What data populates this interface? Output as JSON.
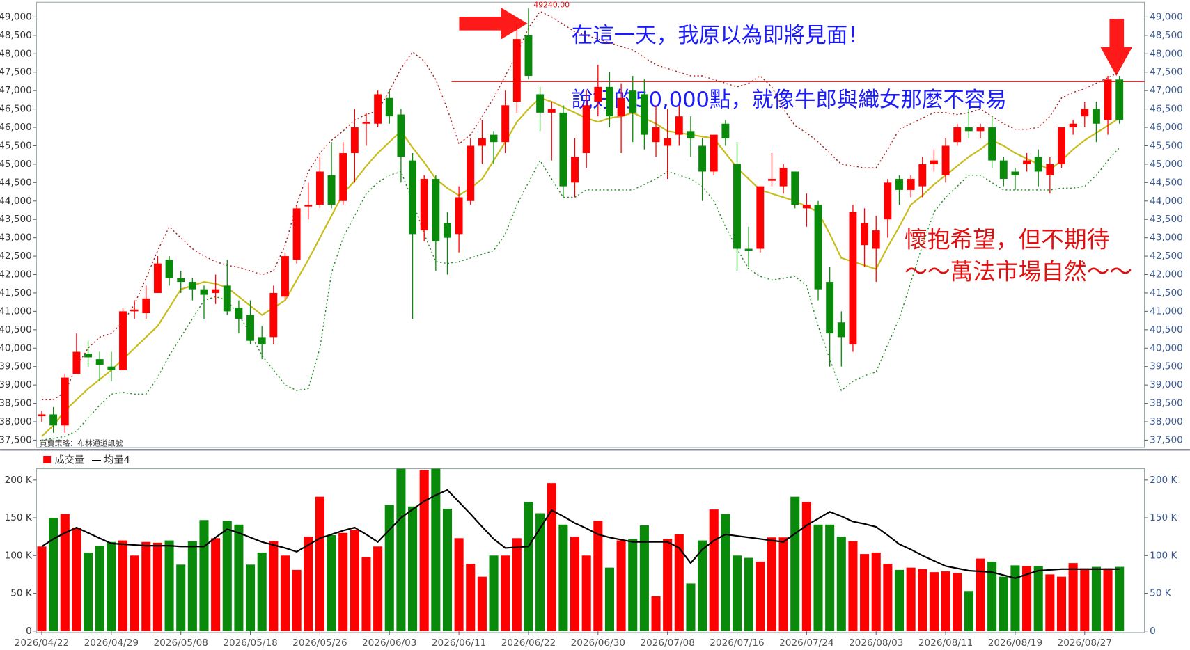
{
  "chart_data": [
    {
      "type": "candlestick",
      "note": "買賣策略：布林通道訊號",
      "annotations": [
        "在這一天，我原以為即將見面！",
        "說好的50,000點，就像牛郎與織女那麼不容易",
        "懷抱希望，但不期待",
        "～～萬法市場自然～～"
      ],
      "max_label": {
        "value": 49240,
        "label": "49240.00"
      },
      "up_color": "#ff0000",
      "down_color": "#0a8a0a",
      "hline": 47250,
      "hline_color": "#b00000",
      "ylim": [
        37300,
        49400
      ],
      "yticks": [
        {
          "value": 37500,
          "label": "37,500"
        },
        {
          "value": 38000,
          "label": "38,000"
        },
        {
          "value": 38500,
          "label": "38,500"
        },
        {
          "value": 39000,
          "label": "39,000"
        },
        {
          "value": 39500,
          "label": "39,500"
        },
        {
          "value": 40000,
          "label": "40,000"
        },
        {
          "value": 40500,
          "label": "40,500"
        },
        {
          "value": 41000,
          "label": "41,000"
        },
        {
          "value": 41500,
          "label": "41,500"
        },
        {
          "value": 42000,
          "label": "42,000"
        },
        {
          "value": 42500,
          "label": "42,500"
        },
        {
          "value": 43000,
          "label": "43,000"
        },
        {
          "value": 43500,
          "label": "43,500"
        },
        {
          "value": 44000,
          "label": "44,000"
        },
        {
          "value": 44500,
          "label": "44,500"
        },
        {
          "value": 45000,
          "label": "45,000"
        },
        {
          "value": 45500,
          "label": "45,500"
        },
        {
          "value": 46000,
          "label": "46,000"
        },
        {
          "value": 46500,
          "label": "46,500"
        },
        {
          "value": 47000,
          "label": "47,000"
        },
        {
          "value": 47500,
          "label": "47,500"
        },
        {
          "value": 48000,
          "label": "48,000"
        },
        {
          "value": 48500,
          "label": "48,500"
        },
        {
          "value": 49000,
          "label": "49,000"
        }
      ],
      "categories": [
        "2026/04/22",
        null,
        null,
        null,
        null,
        null,
        "2026/04/29",
        null,
        null,
        null,
        null,
        null,
        "2026/05/08",
        null,
        null,
        null,
        null,
        null,
        "2026/05/18",
        null,
        null,
        null,
        null,
        null,
        "2026/05/26",
        null,
        null,
        null,
        null,
        null,
        "2026/06/03",
        null,
        null,
        null,
        null,
        null,
        "2026/06/11",
        null,
        null,
        null,
        null,
        null,
        "2026/06/22",
        null,
        null,
        null,
        null,
        null,
        "2026/06/30",
        null,
        null,
        null,
        null,
        null,
        "2026/07/08",
        null,
        null,
        null,
        null,
        null,
        "2026/07/16",
        null,
        null,
        null,
        null,
        null,
        "2026/07/24",
        null,
        null,
        null,
        null,
        null,
        "2026/08/03",
        null,
        null,
        null,
        null,
        null,
        "2026/08/11",
        null,
        null,
        null,
        null,
        null,
        "2026/08/19",
        null,
        null,
        null,
        null,
        null,
        "2026/08/27",
        null,
        null,
        null
      ],
      "open": [
        38150,
        38200,
        37900,
        39300,
        39850,
        39700,
        39500,
        39400,
        41000,
        40950,
        41500,
        42400,
        41900,
        41800,
        41600,
        41500,
        41700,
        41100,
        40900,
        40300,
        40300,
        41400,
        42400,
        43850,
        43900,
        44700,
        44000,
        45300,
        46100,
        46100,
        46800,
        46350,
        45100,
        43200,
        44600,
        43400,
        43100,
        44000,
        45500,
        45800,
        45600,
        46700,
        48500,
        46900,
        46400,
        46400,
        44500,
        45300,
        46700,
        47100,
        46300,
        47000,
        46900,
        45600,
        45500,
        45800,
        45900,
        45500,
        44800,
        46100,
        45000,
        42700,
        42700,
        44550,
        44400,
        44800,
        43800,
        43900,
        41800,
        40700,
        40100,
        42800,
        42700,
        43500,
        44600,
        44300,
        44400,
        45000,
        44700,
        45600,
        46000,
        45900,
        46000,
        45100,
        44800,
        45000,
        45200,
        44700,
        45000,
        46000,
        46300,
        46500,
        46200,
        47300
      ],
      "high": [
        38300,
        38400,
        39300,
        40400,
        40200,
        39900,
        39900,
        41100,
        41300,
        41700,
        42500,
        42500,
        42100,
        41900,
        41700,
        42000,
        42400,
        41300,
        41300,
        40600,
        41700,
        42600,
        43900,
        44500,
        45200,
        45600,
        45600,
        46500,
        46400,
        47000,
        47000,
        46500,
        45300,
        44700,
        44700,
        43700,
        44400,
        45700,
        46200,
        45900,
        47000,
        48800,
        49240,
        47100,
        46700,
        46600,
        45700,
        47000,
        47700,
        47500,
        47200,
        47400,
        47300,
        46600,
        46500,
        46600,
        46300,
        45700,
        45800,
        46200,
        45600,
        43300,
        44400,
        45300,
        45000,
        44800,
        44200,
        44000,
        42200,
        41000,
        43900,
        43800,
        43600,
        44600,
        44700,
        44700,
        45200,
        45400,
        45700,
        46100,
        46500,
        46100,
        46300,
        45200,
        44900,
        45300,
        45400,
        45200,
        46000,
        46200,
        46700,
        46700,
        47400,
        47400
      ],
      "low": [
        38000,
        37700,
        37700,
        39300,
        39500,
        39100,
        39100,
        39400,
        40800,
        40800,
        41500,
        41700,
        41500,
        41300,
        40800,
        41200,
        40900,
        40400,
        40100,
        39700,
        40100,
        41300,
        42300,
        43500,
        43800,
        43800,
        43900,
        44500,
        45500,
        46000,
        46100,
        44500,
        40800,
        42900,
        42100,
        42000,
        42600,
        43900,
        45000,
        45000,
        45300,
        46400,
        47300,
        45900,
        45100,
        44100,
        44100,
        44900,
        46300,
        46000,
        45300,
        45600,
        45400,
        45200,
        44600,
        45500,
        45200,
        44000,
        44700,
        45500,
        42100,
        42200,
        42600,
        44400,
        44200,
        43800,
        43300,
        41300,
        39500,
        39500,
        39900,
        42200,
        41800,
        43000,
        43900,
        44100,
        44100,
        44800,
        44500,
        45500,
        45700,
        45700,
        44900,
        44400,
        44300,
        44800,
        44400,
        44200,
        44900,
        45800,
        46000,
        45600,
        45800,
        46100
      ],
      "close": [
        38200,
        37900,
        39200,
        39900,
        39750,
        39550,
        39400,
        41000,
        41050,
        41350,
        42300,
        41900,
        41800,
        41600,
        41450,
        41600,
        41000,
        40800,
        40200,
        40100,
        41500,
        42500,
        43800,
        43900,
        44800,
        43900,
        45300,
        46000,
        46150,
        46900,
        46300,
        45200,
        43100,
        44600,
        42900,
        43000,
        44100,
        45500,
        45700,
        45600,
        46600,
        48400,
        47400,
        46400,
        46500,
        44400,
        45200,
        46600,
        47100,
        46300,
        46800,
        46400,
        45800,
        46000,
        45700,
        46300,
        45700,
        44800,
        45800,
        45700,
        42700,
        42650,
        44400,
        44600,
        44900,
        43900,
        43900,
        41600,
        40400,
        40300,
        43700,
        43400,
        43200,
        44500,
        44300,
        44600,
        45000,
        45100,
        45500,
        46000,
        45900,
        46000,
        45100,
        44600,
        44700,
        45100,
        44800,
        45000,
        46000,
        46100,
        46500,
        46100,
        47300,
        46200
      ],
      "lines": [
        {
          "color": "#c8bb1a",
          "dash": false,
          "values": [
            37600,
            37900,
            38300,
            38600,
            38900,
            39150,
            39400,
            39700,
            40000,
            40300,
            40600,
            41100,
            41600,
            41700,
            41800,
            41750,
            41650,
            41400,
            41150,
            40900,
            41100,
            41300,
            41850,
            42400,
            43000,
            43600,
            44200,
            44550,
            44950,
            45300,
            45600,
            45900,
            45450,
            45050,
            44600,
            44350,
            44150,
            44350,
            44600,
            45100,
            45600,
            46150,
            46500,
            46800,
            46700,
            46550,
            46400,
            46250,
            46150,
            46250,
            46300,
            46400,
            46250,
            46100,
            45900,
            45850,
            45800,
            45750,
            45700,
            45300,
            44900,
            44600,
            44300,
            44200,
            44100,
            44000,
            43850,
            43700,
            43100,
            42450,
            42350,
            42250,
            42150,
            42750,
            43300,
            43900,
            44150,
            44450,
            44700,
            44950,
            45200,
            45400,
            45650,
            45500,
            45300,
            45150,
            45000,
            44850,
            45100,
            45400,
            45650,
            45850,
            46050,
            46250
          ]
        },
        {
          "color": "#b22222",
          "dash": true,
          "values": [
            38600,
            38600,
            38800,
            39500,
            40000,
            40300,
            40400,
            40700,
            41200,
            41900,
            42650,
            43300,
            43000,
            42700,
            42500,
            42350,
            42250,
            42200,
            42100,
            42000,
            42100,
            42800,
            43900,
            44800,
            45300,
            45650,
            45900,
            46200,
            46350,
            46450,
            47000,
            47600,
            48050,
            47800,
            47300,
            46500,
            45550,
            45800,
            46300,
            46800,
            47400,
            48000,
            48700,
            49150,
            49000,
            48800,
            48600,
            48500,
            48400,
            48300,
            48200,
            48100,
            47900,
            47700,
            47600,
            47500,
            47400,
            47400,
            47300,
            47200,
            47100,
            47200,
            47400,
            47100,
            46500,
            46050,
            45850,
            45600,
            45300,
            45000,
            44950,
            44900,
            44900,
            45400,
            45950,
            46100,
            46250,
            46400,
            46400,
            46350,
            46400,
            46500,
            46300,
            46100,
            45950,
            45950,
            46000,
            46300,
            46800,
            46950,
            47050,
            47200,
            47350,
            47500
          ]
        },
        {
          "color": "#228b22",
          "dash": true,
          "values": [
            37500,
            37550,
            37600,
            37750,
            38100,
            38450,
            38750,
            38800,
            38750,
            38750,
            39200,
            39800,
            40300,
            40800,
            41300,
            41400,
            41300,
            40900,
            40400,
            39800,
            39400,
            39000,
            38850,
            38900,
            40000,
            42050,
            43000,
            43600,
            44200,
            44500,
            44700,
            44800,
            44000,
            43100,
            42350,
            42300,
            42350,
            42450,
            42550,
            42650,
            43100,
            43900,
            44500,
            45100,
            44600,
            44100,
            44100,
            44300,
            44300,
            44300,
            44300,
            44300,
            44450,
            44600,
            44800,
            44700,
            44600,
            44400,
            44000,
            43300,
            42700,
            42150,
            41950,
            41850,
            41900,
            41950,
            41700,
            40600,
            39700,
            38850,
            39100,
            39250,
            39350,
            40100,
            40800,
            41800,
            42800,
            43700,
            44100,
            44400,
            44700,
            44700,
            44500,
            44300,
            44300,
            44300,
            44300,
            44300,
            44350,
            44350,
            44400,
            44700,
            45100,
            45450
          ]
        }
      ]
    },
    {
      "type": "bar",
      "ylim": [
        0,
        215
      ],
      "yticks": [
        0,
        {
          "value": 50,
          "label": "50 K"
        },
        {
          "value": 100,
          "label": "100 K"
        },
        {
          "value": 150,
          "label": "150 K"
        },
        {
          "value": 200,
          "label": "200 K"
        }
      ],
      "series": [
        {
          "name": "成交量",
          "values": [
            112,
            150,
            155,
            137,
            104,
            113,
            118,
            120,
            100,
            118,
            117,
            120,
            88,
            119,
            147,
            123,
            146,
            141,
            88,
            104,
            119,
            100,
            81,
            125,
            178,
            127,
            130,
            134,
            98,
            112,
            167,
            215,
            165,
            213,
            215,
            162,
            123,
            89,
            72,
            100,
            100,
            123,
            171,
            156,
            196,
            141,
            125,
            100,
            146,
            84,
            120,
            122,
            140,
            46,
            122,
            128,
            63,
            120,
            161,
            155,
            100,
            97,
            92,
            124,
            124,
            178,
            171,
            141,
            141,
            125,
            119,
            102,
            104,
            89,
            81,
            84,
            82,
            78,
            79,
            77,
            53,
            96,
            92,
            72,
            87,
            86,
            86,
            75,
            72,
            90,
            83,
            85,
            83,
            85
          ]
        },
        {
          "name": "均量4",
          "color": "#000000",
          "values": [
            112,
            122,
            130,
            137,
            130,
            123,
            116,
            115,
            114,
            113,
            113,
            113,
            112,
            112,
            112,
            124,
            135,
            130,
            124,
            118,
            114,
            110,
            105,
            114,
            123,
            128,
            133,
            137,
            128,
            118,
            134,
            150,
            161,
            172,
            180,
            187,
            171,
            155,
            138,
            122,
            110,
            111,
            112,
            136,
            160,
            152,
            143,
            136,
            128,
            124,
            121,
            118,
            118,
            118,
            118,
            110,
            90,
            108,
            120,
            128,
            126,
            124,
            122,
            120,
            118,
            129,
            140,
            149,
            158,
            152,
            145,
            142,
            138,
            127,
            115,
            108,
            100,
            93,
            86,
            83,
            80,
            79,
            78,
            74,
            70,
            75,
            80,
            81,
            82,
            82,
            82,
            82,
            82,
            82
          ]
        }
      ]
    }
  ]
}
